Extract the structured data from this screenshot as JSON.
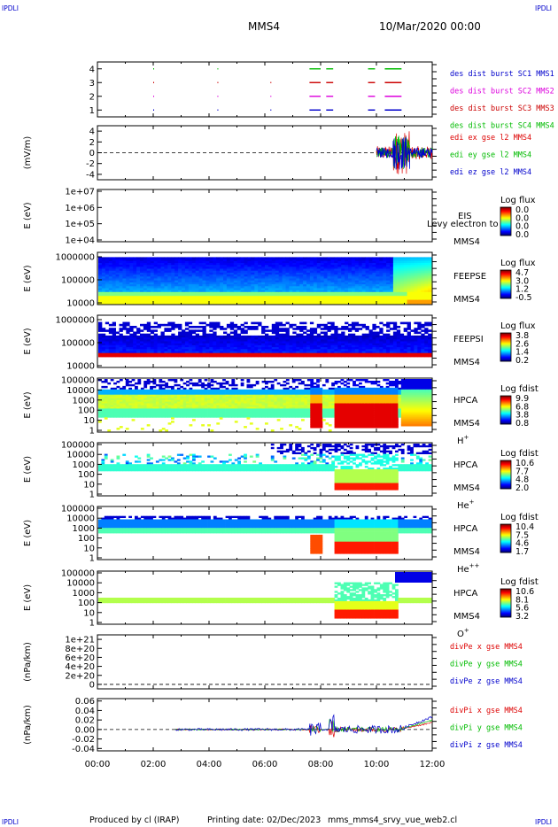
{
  "header": {
    "corner_left_top": "IPDLI",
    "corner_right_top": "IPDLI",
    "corner_left_bottom": "IPDLI",
    "corner_right_bottom": "IPDLI",
    "spacecraft": "MMS4",
    "date": "10/Mar/2020 00:00"
  },
  "footer": {
    "produced": "Produced by cl (IRAP)",
    "printing": "Printing date: 02/Dec/2023",
    "file": "mms_mms4_srvy_vue_web2.cl"
  },
  "colors": {
    "mms1": "#0000cc",
    "mms2": "#dd00dd",
    "mms3": "#cc0000",
    "mms4": "#00bb00",
    "x_comp": "#dd0000",
    "y_comp": "#00bb00",
    "z_comp": "#0000cc"
  },
  "chart_data": [
    {
      "type": "scatter",
      "name": "burst-availability",
      "ylim": [
        0.5,
        4.5
      ],
      "yticks": [
        "1",
        "2",
        "3",
        "4"
      ],
      "legend": [
        "des dist burst SC1 MMS1",
        "des dist burst SC2 MMS2",
        "des dist burst SC3 MMS3",
        "des dist burst SC4 MMS4"
      ],
      "series": [
        {
          "name": "des dist burst SC1 MMS1",
          "y": 1,
          "segments_h": [
            [
              2.0,
              2.02
            ],
            [
              4.3,
              4.32
            ],
            [
              6.2,
              6.22
            ],
            [
              7.6,
              8.0
            ],
            [
              8.2,
              8.45
            ],
            [
              9.7,
              9.95
            ],
            [
              10.3,
              10.9
            ]
          ]
        },
        {
          "name": "des dist burst SC2 MMS2",
          "y": 2,
          "segments_h": [
            [
              2.0,
              2.02
            ],
            [
              4.3,
              4.32
            ],
            [
              6.2,
              6.22
            ],
            [
              7.6,
              8.0
            ],
            [
              8.2,
              8.45
            ],
            [
              9.7,
              9.95
            ],
            [
              10.3,
              10.9
            ]
          ]
        },
        {
          "name": "des dist burst SC3 MMS3",
          "y": 3,
          "segments_h": [
            [
              2.0,
              2.02
            ],
            [
              4.3,
              4.32
            ],
            [
              6.2,
              6.22
            ],
            [
              7.6,
              8.0
            ],
            [
              8.2,
              8.45
            ],
            [
              9.7,
              9.95
            ],
            [
              10.3,
              10.9
            ]
          ]
        },
        {
          "name": "des dist burst SC4 MMS4",
          "y": 4,
          "segments_h": [
            [
              2.0,
              2.02
            ],
            [
              4.3,
              4.32
            ],
            [
              7.6,
              8.0
            ],
            [
              8.2,
              8.45
            ],
            [
              9.7,
              9.95
            ],
            [
              10.3,
              10.9
            ]
          ]
        }
      ]
    },
    {
      "type": "line",
      "name": "edi-field",
      "ylabel": "(mV/m)",
      "ylim": [
        -5,
        5
      ],
      "yticks": [
        "-4",
        "-2",
        "0",
        "2",
        "4"
      ],
      "legend": [
        "edi ex gse l2 MMS4",
        "edi ey gse l2 MMS4",
        "edi ez gse l2 MMS4"
      ],
      "data_range_h": [
        10.0,
        12.0
      ],
      "amplitude_peak": 4
    },
    {
      "type": "heatmap",
      "name": "eis",
      "ylabel": "E (eV)",
      "yticks": [
        "1e+04",
        "1e+05",
        "1e+06",
        "1e+07"
      ],
      "instrument": [
        "EIS",
        "MMS4"
      ],
      "overlay_label": "Levy electron to",
      "colorbar_title": "Log flux",
      "colorbar_ticks": [
        "0.0",
        "0.0",
        "0.0",
        "0.0"
      ]
    },
    {
      "type": "heatmap",
      "name": "feeps-e",
      "ylabel": "E (eV)",
      "yticks": [
        "10000",
        "100000",
        "1000000"
      ],
      "instrument": [
        "FEEPSE",
        "MMS4"
      ],
      "colorbar_title": "Log flux",
      "colorbar_ticks": [
        "4.7",
        "3.0",
        "1.2",
        "-0.5"
      ]
    },
    {
      "type": "heatmap",
      "name": "feeps-i",
      "ylabel": "E (eV)",
      "yticks": [
        "10000",
        "100000",
        "1000000"
      ],
      "instrument": [
        "FEEPSI",
        "MMS4"
      ],
      "colorbar_title": "Log flux",
      "colorbar_ticks": [
        "3.8",
        "2.6",
        "1.4",
        "0.2"
      ]
    },
    {
      "type": "heatmap",
      "name": "hpca-h",
      "ylabel": "E (eV)",
      "yticks": [
        "1",
        "10",
        "100",
        "1000",
        "10000",
        "100000"
      ],
      "instrument": [
        "HPCA",
        "MMS4"
      ],
      "species": "H",
      "species_charge": "+",
      "colorbar_title": "Log fdist",
      "colorbar_ticks": [
        "9.9",
        "6.8",
        "3.8",
        "0.8"
      ]
    },
    {
      "type": "heatmap",
      "name": "hpca-he",
      "ylabel": "E (eV)",
      "yticks": [
        "1",
        "10",
        "100",
        "1000",
        "10000",
        "100000"
      ],
      "instrument": [
        "HPCA",
        "MMS4"
      ],
      "species": "He",
      "species_charge": "+",
      "colorbar_title": "Log fdist",
      "colorbar_ticks": [
        "10.6",
        "7.7",
        "4.8",
        "2.0"
      ]
    },
    {
      "type": "heatmap",
      "name": "hpca-hepp",
      "ylabel": "E (eV)",
      "yticks": [
        "1",
        "10",
        "100",
        "1000",
        "10000",
        "100000"
      ],
      "instrument": [
        "HPCA",
        "MMS4"
      ],
      "species": "He",
      "species_charge": "++",
      "colorbar_title": "Log fdist",
      "colorbar_ticks": [
        "10.4",
        "7.5",
        "4.6",
        "1.7"
      ]
    },
    {
      "type": "heatmap",
      "name": "hpca-o",
      "ylabel": "E (eV)",
      "yticks": [
        "1",
        "10",
        "100",
        "1000",
        "10000",
        "100000"
      ],
      "instrument": [
        "HPCA",
        "MMS4"
      ],
      "species": "O",
      "species_charge": "+",
      "colorbar_title": "Log fdist",
      "colorbar_ticks": [
        "10.6",
        "8.1",
        "5.6",
        "3.2"
      ]
    },
    {
      "type": "line",
      "name": "div-pe",
      "ylabel": "(nPa/km)",
      "ylim": [
        -1e+20,
        1.1e+21
      ],
      "yticks": [
        "0",
        "2e+20",
        "4e+20",
        "6e+20",
        "8e+20",
        "1e+21"
      ],
      "legend": [
        "divPe x gse MMS4",
        "divPe y gse MMS4",
        "divPe z gse MMS4"
      ]
    },
    {
      "type": "line",
      "name": "div-pi",
      "ylabel": "(nPa/km)",
      "ylim": [
        -0.045,
        0.065
      ],
      "yticks": [
        "-0.04",
        "-0.02",
        "0.00",
        "0.02",
        "0.04",
        "0.06"
      ],
      "legend": [
        "divPi x gse MMS4",
        "divPi y gse MMS4",
        "divPi z gse MMS4"
      ],
      "data_range_h": [
        2.8,
        12.0
      ]
    }
  ],
  "time_axis": {
    "xlim_h": [
      0,
      12
    ],
    "ticks": [
      "00:00",
      "02:00",
      "04:00",
      "06:00",
      "08:00",
      "10:00",
      "12:00"
    ]
  }
}
